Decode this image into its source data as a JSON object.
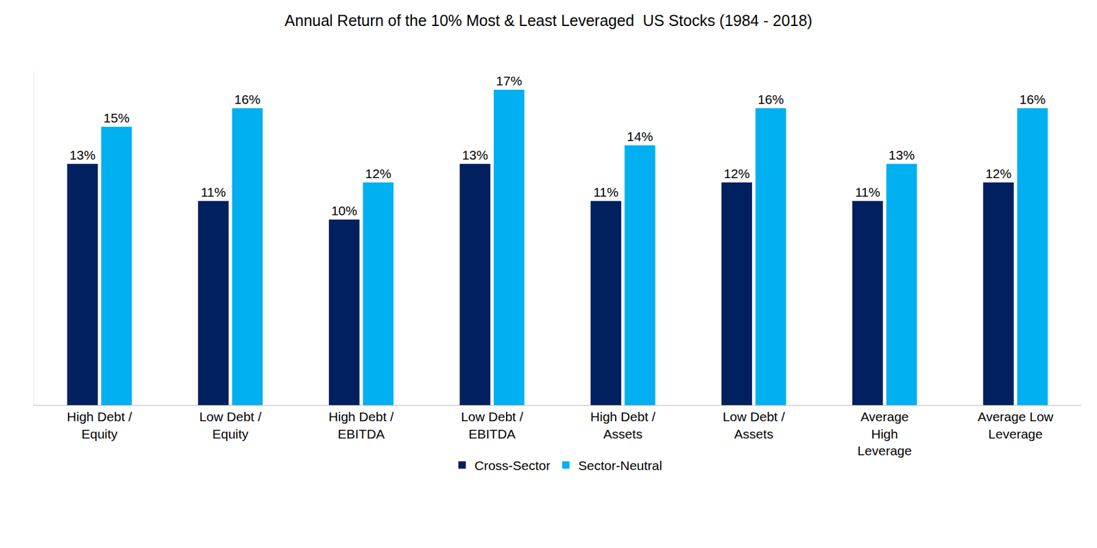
{
  "chart_data": {
    "type": "bar",
    "title": "Annual Return of the 10% Most & Least Leveraged  US Stocks (1984 - 2018)",
    "categories": [
      "High Debt / Equity",
      "Low Debt / Equity",
      "High Debt / EBITDA",
      "Low Debt / EBITDA",
      "High Debt / Assets",
      "Low Debt / Assets",
      "Average High Leverage",
      "Average Low Leverage"
    ],
    "series": [
      {
        "name": "Cross-Sector",
        "color": "#002060",
        "values": [
          13,
          11,
          10,
          13,
          11,
          12,
          11,
          12
        ],
        "value_labels": [
          "13%",
          "11%",
          "10%",
          "13%",
          "11%",
          "12%",
          "11%",
          "12%"
        ]
      },
      {
        "name": "Sector-Neutral",
        "color": "#00B0F0",
        "values": [
          15,
          16,
          12,
          17,
          14,
          16,
          13,
          16
        ],
        "value_labels": [
          "15%",
          "16%",
          "12%",
          "17%",
          "14%",
          "16%",
          "13%",
          "16%"
        ]
      }
    ],
    "ylim": [
      0,
      18
    ],
    "grid": false,
    "legend": "bottom",
    "data_labels": true,
    "tick_labels": "x"
  }
}
